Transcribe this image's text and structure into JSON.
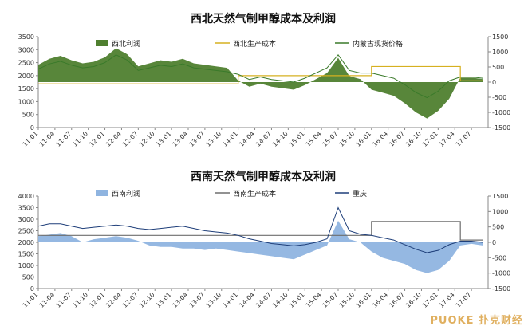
{
  "watermark": "PUOKE 扑克财经",
  "chart_data": [
    {
      "type": "area+line",
      "title": "西北天然气制甲醇成本及利润",
      "legend": [
        "西北利润",
        "西北生产成本",
        "内蒙古现货价格"
      ],
      "legend_placement": "top",
      "ylim_left": [
        0,
        3500
      ],
      "yticks_left": [
        0,
        500,
        1000,
        1500,
        2000,
        2500,
        3000,
        3500
      ],
      "ylim_right": [
        -1500,
        1500
      ],
      "yticks_right": [
        -1500,
        -1000,
        -500,
        0,
        500,
        1000,
        1500
      ],
      "xticks": [
        "11-01",
        "11-04",
        "11-07",
        "11-10",
        "12-01",
        "12-04",
        "12-07",
        "12-10",
        "13-01",
        "13-04",
        "13-07",
        "13-10",
        "14-01",
        "14-04",
        "14-07",
        "14-10",
        "15-01",
        "15-04",
        "15-07",
        "15-10",
        "16-01",
        "16-04",
        "16-07",
        "16-10",
        "17-01",
        "17-04",
        "17-07"
      ],
      "colors": {
        "profit": "#4f7f2f",
        "cost": "#d6b020",
        "price": "#3a7a2a"
      },
      "x": [
        0,
        2,
        4,
        6,
        8,
        10,
        12,
        14,
        16,
        18,
        20,
        22,
        24,
        26,
        28,
        30,
        32,
        34,
        36,
        38,
        40,
        42,
        44,
        46,
        48,
        50,
        52,
        54,
        56,
        58,
        60,
        62,
        64,
        66,
        68,
        70,
        72,
        74,
        76,
        78,
        80
      ],
      "cost": [
        1680,
        1680,
        1680,
        1680,
        1680,
        1680,
        1680,
        1680,
        1680,
        1680,
        1680,
        1680,
        1680,
        1680,
        1680,
        1680,
        1680,
        1680,
        2000,
        2000,
        2000,
        2000,
        2000,
        2000,
        2000,
        2000,
        2000,
        2000,
        2000,
        2000,
        2350,
        2350,
        2350,
        2350,
        2350,
        2350,
        2350,
        2350,
        1800,
        1800,
        1800
      ],
      "price": [
        2250,
        2450,
        2550,
        2400,
        2300,
        2350,
        2500,
        2800,
        2600,
        2200,
        2300,
        2400,
        2350,
        2450,
        2300,
        2250,
        2200,
        2150,
        2050,
        1850,
        1950,
        1850,
        1800,
        1750,
        1900,
        2100,
        2300,
        2800,
        2200,
        2100,
        2100,
        2000,
        1900,
        1650,
        1350,
        1150,
        1400,
        1800,
        1950,
        1950,
        1900
      ],
      "profit": [
        570,
        770,
        870,
        720,
        620,
        670,
        820,
        1120,
        920,
        520,
        620,
        720,
        670,
        770,
        620,
        570,
        520,
        470,
        50,
        -150,
        -50,
        -150,
        -200,
        -250,
        -100,
        100,
        300,
        800,
        200,
        100,
        -250,
        -350,
        -450,
        -700,
        -1000,
        -1200,
        -950,
        -550,
        150,
        150,
        100
      ]
    },
    {
      "type": "area+line",
      "title": "西南天然气制甲醇成本及利润",
      "legend": [
        "西南利润",
        "西南生产成本",
        "重庆"
      ],
      "legend_placement": "top",
      "ylim_left": [
        0,
        4000
      ],
      "yticks_left": [
        0,
        500,
        1000,
        1500,
        2000,
        2500,
        3000,
        3500,
        4000
      ],
      "ylim_right": [
        -1500,
        1500
      ],
      "yticks_right": [
        -1500,
        -1000,
        -500,
        0,
        500,
        1000,
        1500
      ],
      "xticks": [
        "11-01",
        "11-04",
        "11-07",
        "11-10",
        "12-01",
        "12-04",
        "12-07",
        "12-10",
        "13-01",
        "13-04",
        "13-07",
        "13-10",
        "14-01",
        "14-04",
        "14-07",
        "14-10",
        "15-01",
        "15-04",
        "15-07",
        "15-10",
        "16-01",
        "16-04",
        "16-07",
        "16-10",
        "17-01",
        "17-04",
        "17-07"
      ],
      "colors": {
        "profit": "#8fb4e0",
        "cost": "#6e6e6e",
        "price": "#1f3f7a"
      },
      "x": [
        0,
        2,
        4,
        6,
        8,
        10,
        12,
        14,
        16,
        18,
        20,
        22,
        24,
        26,
        28,
        30,
        32,
        34,
        36,
        38,
        40,
        42,
        44,
        46,
        48,
        50,
        52,
        54,
        56,
        58,
        60,
        62,
        64,
        66,
        68,
        70,
        72,
        74,
        76,
        78,
        80
      ],
      "cost": [
        2300,
        2300,
        2300,
        2300,
        2300,
        2300,
        2300,
        2300,
        2300,
        2300,
        2300,
        2300,
        2300,
        2300,
        2300,
        2300,
        2300,
        2300,
        2300,
        2300,
        2300,
        2300,
        2300,
        2300,
        2300,
        2300,
        2300,
        2300,
        2300,
        2300,
        2900,
        2900,
        2900,
        2900,
        2900,
        2900,
        2900,
        2900,
        2100,
        2100,
        2100
      ],
      "price": [
        2700,
        2800,
        2800,
        2700,
        2600,
        2650,
        2700,
        2750,
        2700,
        2600,
        2550,
        2600,
        2650,
        2700,
        2600,
        2500,
        2450,
        2400,
        2300,
        2150,
        2050,
        1950,
        1900,
        1850,
        1900,
        2000,
        2150,
        3500,
        2500,
        2350,
        2300,
        2200,
        2100,
        1900,
        1700,
        1550,
        1650,
        1900,
        2050,
        2050,
        2000
      ],
      "profit": [
        200,
        250,
        300,
        200,
        0,
        100,
        150,
        200,
        150,
        50,
        -100,
        -150,
        -150,
        -200,
        -200,
        -250,
        -200,
        -250,
        -300,
        -350,
        -400,
        -450,
        -500,
        -550,
        -400,
        -250,
        -100,
        700,
        100,
        0,
        -300,
        -500,
        -600,
        -700,
        -900,
        -1000,
        -900,
        -600,
        -100,
        -50,
        -100
      ]
    }
  ]
}
